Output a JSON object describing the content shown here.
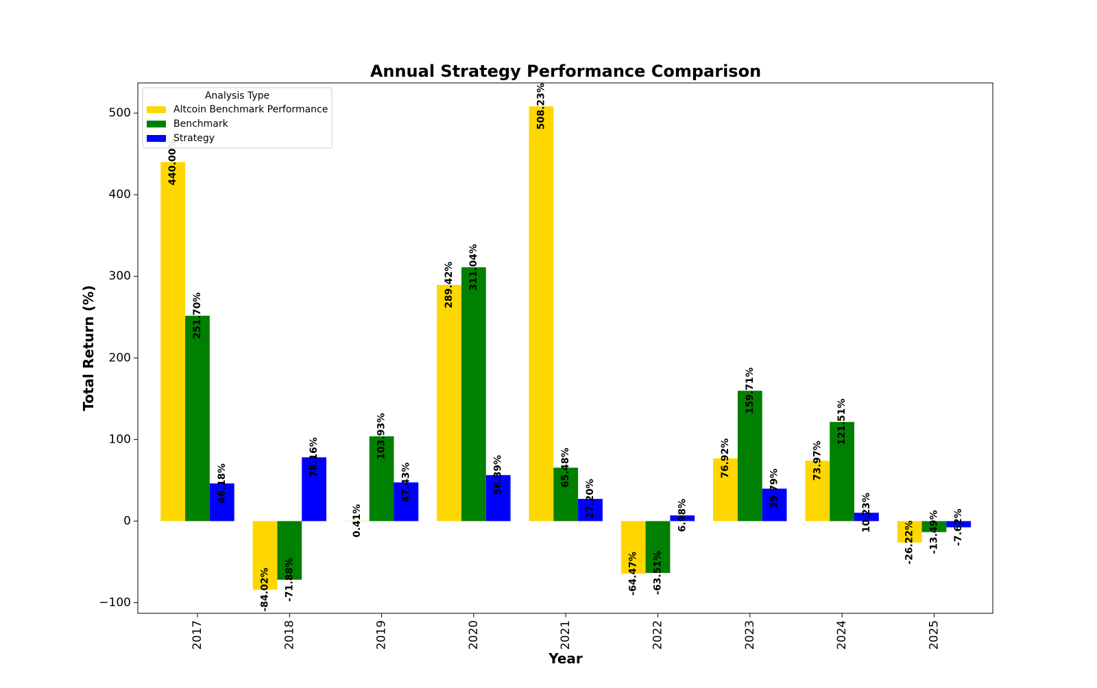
{
  "chart_data": {
    "type": "bar",
    "title": "Annual Strategy Performance Comparison",
    "xlabel": "Year",
    "ylabel": "Total Return (%)",
    "categories": [
      "2017",
      "2018",
      "2019",
      "2020",
      "2021",
      "2022",
      "2023",
      "2024",
      "2025"
    ],
    "ylim": [
      -113,
      537
    ],
    "yticks": [
      {
        "value": -100,
        "label": "−100"
      },
      {
        "value": 0,
        "label": "0"
      },
      {
        "value": 100,
        "label": "100"
      },
      {
        "value": 200,
        "label": "200"
      },
      {
        "value": 300,
        "label": "300"
      },
      {
        "value": 400,
        "label": "400"
      },
      {
        "value": 500,
        "label": "500"
      }
    ],
    "grid": false,
    "legend": {
      "title": "Analysis Type",
      "placement": "top-left"
    },
    "series": [
      {
        "name": "Altcoin Benchmark Performance",
        "color": "#FFD700",
        "values": [
          440.0,
          -84.02,
          0.41,
          289.42,
          508.23,
          -64.47,
          76.92,
          73.97,
          -26.22
        ],
        "labels": [
          "440.00%",
          "-84.02%",
          "0.41%",
          "289.42%",
          "508.23%",
          "-64.47%",
          "76.92%",
          "73.97%",
          "-26.22%"
        ]
      },
      {
        "name": "Benchmark",
        "color": "#008000",
        "values": [
          251.7,
          -71.88,
          103.93,
          311.04,
          65.48,
          -63.51,
          159.71,
          121.51,
          -13.49
        ],
        "labels": [
          "251.70%",
          "-71.88%",
          "103.93%",
          "311.04%",
          "65.48%",
          "-63.51%",
          "159.71%",
          "121.51%",
          "-13.49%"
        ]
      },
      {
        "name": "Strategy",
        "color": "#0000FF",
        "values": [
          46.18,
          78.16,
          47.43,
          56.39,
          27.2,
          6.98,
          39.79,
          10.23,
          -7.62
        ],
        "labels": [
          "46.18%",
          "78.16%",
          "47.43%",
          "56.39%",
          "27.20%",
          "6.98%",
          "39.79%",
          "10.23%",
          "-7.62%"
        ]
      }
    ]
  }
}
